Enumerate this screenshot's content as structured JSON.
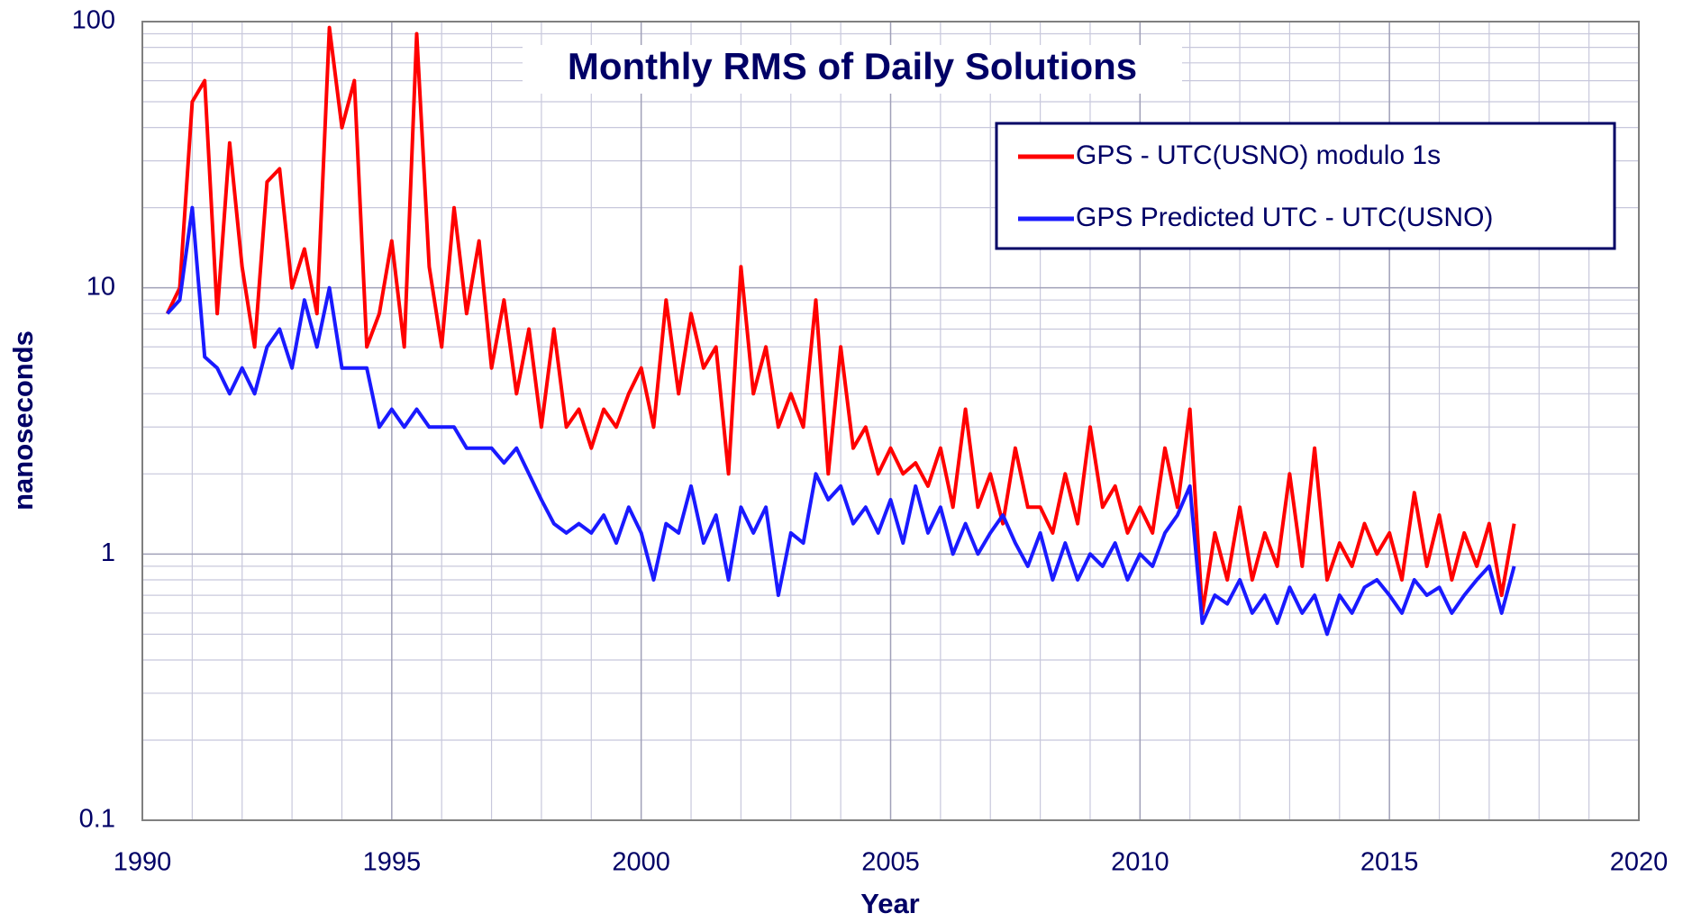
{
  "chart_data": {
    "type": "line",
    "title": "Monthly RMS of Daily Solutions",
    "xlabel": "Year",
    "ylabel": "nanoseconds",
    "xlim": [
      1990,
      2020
    ],
    "xticks": [
      1990,
      1995,
      2000,
      2005,
      2010,
      2015,
      2020
    ],
    "ylim": [
      0.1,
      100
    ],
    "yticks": [
      0.1,
      1,
      10,
      100
    ],
    "log_y": true,
    "grid": true,
    "legend": "upper right",
    "x": [
      1990.5,
      1990.75,
      1991,
      1991.25,
      1991.5,
      1991.75,
      1992,
      1992.25,
      1992.5,
      1992.75,
      1993,
      1993.25,
      1993.5,
      1993.75,
      1994,
      1994.25,
      1994.5,
      1994.75,
      1995,
      1995.25,
      1995.5,
      1995.75,
      1996,
      1996.25,
      1996.5,
      1996.75,
      1997,
      1997.25,
      1997.5,
      1997.75,
      1998,
      1998.25,
      1998.5,
      1998.75,
      1999,
      1999.25,
      1999.5,
      1999.75,
      2000,
      2000.25,
      2000.5,
      2000.75,
      2001,
      2001.25,
      2001.5,
      2001.75,
      2002,
      2002.25,
      2002.5,
      2002.75,
      2003,
      2003.25,
      2003.5,
      2003.75,
      2004,
      2004.25,
      2004.5,
      2004.75,
      2005,
      2005.25,
      2005.5,
      2005.75,
      2006,
      2006.25,
      2006.5,
      2006.75,
      2007,
      2007.25,
      2007.5,
      2007.75,
      2008,
      2008.25,
      2008.5,
      2008.75,
      2009,
      2009.25,
      2009.5,
      2009.75,
      2010,
      2010.25,
      2010.5,
      2010.75,
      2011,
      2011.25,
      2011.5,
      2011.75,
      2012,
      2012.25,
      2012.5,
      2012.75,
      2013,
      2013.25,
      2013.5,
      2013.75,
      2014,
      2014.25,
      2014.5,
      2014.75,
      2015,
      2015.25,
      2015.5,
      2015.75,
      2016,
      2016.25,
      2016.5,
      2016.75,
      2017,
      2017.25,
      2017.5
    ],
    "series": [
      {
        "name": "GPS - UTC(USNO) modulo 1s",
        "color": "#ff0000",
        "values": [
          8,
          10,
          50,
          60,
          8,
          35,
          12,
          6,
          25,
          28,
          10,
          14,
          8,
          95,
          40,
          60,
          6,
          8,
          15,
          6,
          90,
          12,
          6,
          20,
          8,
          15,
          5,
          9,
          4,
          7,
          3,
          7,
          3,
          3.5,
          2.5,
          3.5,
          3,
          4,
          5,
          3,
          9,
          4,
          8,
          5,
          6,
          2,
          12,
          4,
          6,
          3,
          4,
          3,
          9,
          2,
          6,
          2.5,
          3,
          2,
          2.5,
          2,
          2.2,
          1.8,
          2.5,
          1.5,
          3.5,
          1.5,
          2,
          1.3,
          2.5,
          1.5,
          1.5,
          1.2,
          2,
          1.3,
          3,
          1.5,
          1.8,
          1.2,
          1.5,
          1.2,
          2.5,
          1.5,
          3.5,
          0.6,
          1.2,
          0.8,
          1.5,
          0.8,
          1.2,
          0.9,
          2,
          0.9,
          2.5,
          0.8,
          1.1,
          0.9,
          1.3,
          1,
          1.2,
          0.8,
          1.7,
          0.9,
          1.4,
          0.8,
          1.2,
          0.9,
          1.3,
          0.7,
          1.3
        ]
      },
      {
        "name": "GPS Predicted UTC - UTC(USNO)",
        "color": "#1a1aff",
        "values": [
          8,
          9,
          20,
          5.5,
          5,
          4,
          5,
          4,
          6,
          7,
          5,
          9,
          6,
          10,
          5,
          5,
          5,
          3,
          3.5,
          3,
          3.5,
          3,
          3,
          3,
          2.5,
          2.5,
          2.5,
          2.2,
          2.5,
          2,
          1.6,
          1.3,
          1.2,
          1.3,
          1.2,
          1.4,
          1.1,
          1.5,
          1.2,
          0.8,
          1.3,
          1.2,
          1.8,
          1.1,
          1.4,
          0.8,
          1.5,
          1.2,
          1.5,
          0.7,
          1.2,
          1.1,
          2,
          1.6,
          1.8,
          1.3,
          1.5,
          1.2,
          1.6,
          1.1,
          1.8,
          1.2,
          1.5,
          1,
          1.3,
          1,
          1.2,
          1.4,
          1.1,
          0.9,
          1.2,
          0.8,
          1.1,
          0.8,
          1,
          0.9,
          1.1,
          0.8,
          1,
          0.9,
          1.2,
          1.4,
          1.8,
          0.55,
          0.7,
          0.65,
          0.8,
          0.6,
          0.7,
          0.55,
          0.75,
          0.6,
          0.7,
          0.5,
          0.7,
          0.6,
          0.75,
          0.8,
          0.7,
          0.6,
          0.8,
          0.7,
          0.75,
          0.6,
          0.7,
          0.8,
          0.9,
          0.6,
          0.9
        ]
      }
    ]
  }
}
